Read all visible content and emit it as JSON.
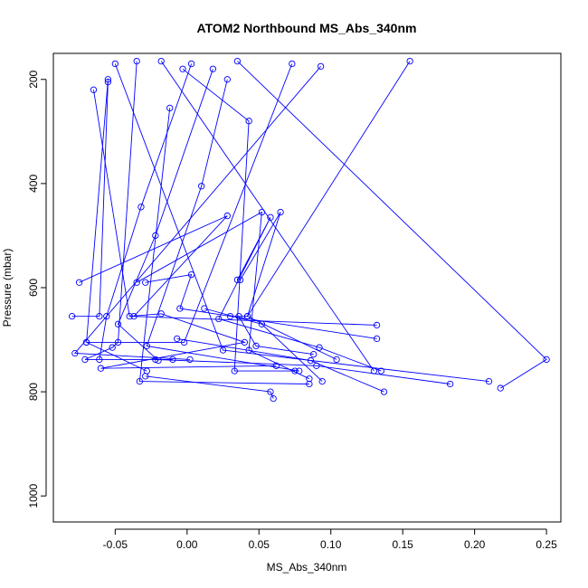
{
  "chart_data": {
    "type": "line",
    "title": "ATOM2 Northbound MS_Abs_340nm",
    "xlabel": "MS_Abs_340nm",
    "ylabel": "Pressure (mbar)",
    "xlim": [
      -0.093,
      0.26
    ],
    "ylim": [
      1050,
      150
    ],
    "y_reversed": true,
    "grid": false,
    "x_ticks": [
      -0.05,
      0.0,
      0.05,
      0.1,
      0.15,
      0.2,
      0.25
    ],
    "x_tick_labels": [
      "-0.05",
      "0.00",
      "0.05",
      "0.10",
      "0.15",
      "0.20",
      "0.25"
    ],
    "y_ticks": [
      200,
      400,
      600,
      800,
      1000
    ],
    "y_tick_labels": [
      "200",
      "400",
      "600",
      "800",
      "1000"
    ],
    "color": "#0000ff",
    "series": [
      {
        "points": [
          {
            "x": -0.065,
            "y": 220
          },
          {
            "x": -0.04,
            "y": 655
          },
          {
            "x": -0.018,
            "y": 650
          },
          {
            "x": 0.04,
            "y": 705
          },
          {
            "x": -0.06,
            "y": 755
          },
          {
            "x": 0.062,
            "y": 750
          }
        ]
      },
      {
        "points": [
          {
            "x": -0.055,
            "y": 200
          },
          {
            "x": -0.07,
            "y": 705
          },
          {
            "x": -0.028,
            "y": 760
          }
        ]
      },
      {
        "points": [
          {
            "x": -0.055,
            "y": 205
          },
          {
            "x": -0.061,
            "y": 655
          },
          {
            "x": -0.08,
            "y": 655
          }
        ]
      },
      {
        "points": [
          {
            "x": -0.035,
            "y": 165
          },
          {
            "x": -0.048,
            "y": 705
          },
          {
            "x": -0.052,
            "y": 715
          },
          {
            "x": -0.071,
            "y": 738
          },
          {
            "x": -0.01,
            "y": 738
          }
        ]
      },
      {
        "points": [
          {
            "x": -0.012,
            "y": 255
          },
          {
            "x": -0.033,
            "y": 780
          },
          {
            "x": 0.085,
            "y": 785
          }
        ]
      },
      {
        "points": [
          {
            "x": -0.003,
            "y": 180
          },
          {
            "x": 0.043,
            "y": 280
          },
          {
            "x": 0.033,
            "y": 760
          },
          {
            "x": 0.075,
            "y": 760
          }
        ]
      },
      {
        "points": [
          {
            "x": 0.003,
            "y": 170
          },
          {
            "x": -0.032,
            "y": 445
          },
          {
            "x": -0.056,
            "y": 655
          },
          {
            "x": -0.061,
            "y": 738
          }
        ]
      },
      {
        "points": [
          {
            "x": 0.018,
            "y": 180
          },
          {
            "x": -0.022,
            "y": 500
          },
          {
            "x": -0.048,
            "y": 670
          },
          {
            "x": -0.02,
            "y": 740
          }
        ]
      },
      {
        "points": [
          {
            "x": 0.028,
            "y": 200
          },
          {
            "x": 0.01,
            "y": 405
          },
          {
            "x": -0.028,
            "y": 712
          },
          {
            "x": 0.078,
            "y": 760
          }
        ]
      },
      {
        "points": [
          {
            "x": -0.035,
            "y": 590
          },
          {
            "x": 0.052,
            "y": 455
          },
          {
            "x": 0.043,
            "y": 720
          },
          {
            "x": 0.085,
            "y": 775
          }
        ]
      },
      {
        "points": [
          {
            "x": -0.075,
            "y": 590
          },
          {
            "x": 0.028,
            "y": 462
          },
          {
            "x": -0.037,
            "y": 655
          },
          {
            "x": 0.132,
            "y": 672
          }
        ]
      },
      {
        "points": [
          {
            "x": -0.029,
            "y": 590
          },
          {
            "x": 0.003,
            "y": 575
          },
          {
            "x": -0.005,
            "y": 640
          },
          {
            "x": 0.132,
            "y": 698
          }
        ]
      },
      {
        "points": [
          {
            "x": 0.035,
            "y": 585
          },
          {
            "x": 0.058,
            "y": 465
          },
          {
            "x": 0.022,
            "y": 660
          },
          {
            "x": 0.092,
            "y": 715
          },
          {
            "x": 0.135,
            "y": 760
          }
        ]
      },
      {
        "points": [
          {
            "x": 0.037,
            "y": 585
          },
          {
            "x": 0.065,
            "y": 455
          },
          {
            "x": 0.042,
            "y": 655
          },
          {
            "x": 0.104,
            "y": 738
          }
        ]
      },
      {
        "points": [
          {
            "x": 0.012,
            "y": 640
          },
          {
            "x": 0.052,
            "y": 670
          },
          {
            "x": 0.094,
            "y": 780
          }
        ]
      },
      {
        "points": [
          {
            "x": 0.036,
            "y": 655
          },
          {
            "x": 0.048,
            "y": 712
          },
          {
            "x": 0.088,
            "y": 728
          }
        ]
      },
      {
        "points": [
          {
            "x": -0.022,
            "y": 738
          },
          {
            "x": 0.09,
            "y": 750
          },
          {
            "x": 0.183,
            "y": 785
          }
        ]
      },
      {
        "points": [
          {
            "x": -0.007,
            "y": 698
          },
          {
            "x": 0.086,
            "y": 740
          },
          {
            "x": 0.137,
            "y": 800
          }
        ]
      },
      {
        "points": [
          {
            "x": -0.029,
            "y": 770
          },
          {
            "x": 0.058,
            "y": 800
          },
          {
            "x": 0.06,
            "y": 813
          }
        ]
      },
      {
        "points": [
          {
            "x": -0.05,
            "y": 170
          },
          {
            "x": 0.025,
            "y": 720
          },
          {
            "x": 0.21,
            "y": 780
          }
        ]
      },
      {
        "points": [
          {
            "x": 0.035,
            "y": 165
          },
          {
            "x": 0.25,
            "y": 738
          },
          {
            "x": 0.218,
            "y": 793
          }
        ]
      },
      {
        "points": [
          {
            "x": -0.018,
            "y": 165
          },
          {
            "x": 0.13,
            "y": 760
          }
        ]
      },
      {
        "points": [
          {
            "x": 0.155,
            "y": 165
          },
          {
            "x": 0.042,
            "y": 655
          },
          {
            "x": 0.03,
            "y": 655
          }
        ]
      },
      {
        "points": [
          {
            "x": 0.093,
            "y": 175
          },
          {
            "x": -0.078,
            "y": 726
          },
          {
            "x": 0.002,
            "y": 738
          }
        ]
      },
      {
        "points": [
          {
            "x": 0.073,
            "y": 170
          },
          {
            "x": -0.002,
            "y": 705
          },
          {
            "x": -0.07,
            "y": 705
          }
        ]
      }
    ]
  }
}
